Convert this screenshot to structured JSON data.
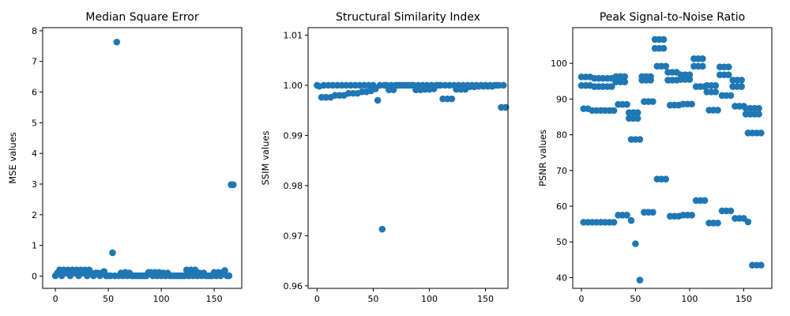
{
  "chart_data": [
    {
      "type": "scatter",
      "title": "Median Square Error",
      "xlabel": "",
      "ylabel": "MSE values",
      "xlim": [
        -12,
        176
      ],
      "ylim": [
        -0.4,
        8.1
      ],
      "xticks": [
        0,
        50,
        100,
        150
      ],
      "yticks": [
        0,
        1,
        2,
        3,
        4,
        5,
        6,
        7,
        8
      ],
      "ytick_labels": [
        "0",
        "1",
        "2",
        "3",
        "4",
        "5",
        "6",
        "7",
        "8"
      ],
      "color": "#1f77b4",
      "grid": false,
      "x_step": 2,
      "values": [
        0.01,
        0.1,
        0.2,
        0.01,
        0.2,
        0.1,
        0.2,
        0.01,
        0.2,
        0.1,
        0.2,
        0.01,
        0.2,
        0.1,
        0.2,
        0.01,
        0.2,
        0.1,
        0.01,
        0.1,
        0.1,
        0.01,
        0.1,
        0.15,
        0.01,
        0.01,
        0.01,
        0.76,
        0.01,
        7.63,
        0.01,
        0.1,
        0.01,
        0.12,
        0.01,
        0.1,
        0.01,
        0.01,
        0.01,
        0.01,
        0.01,
        0.01,
        0.01,
        0.01,
        0.12,
        0.12,
        0.01,
        0.12,
        0.01,
        0.12,
        0.01,
        0.1,
        0.01,
        0.1,
        0.01,
        0.01,
        0.01,
        0.01,
        0.01,
        0.01,
        0.01,
        0.01,
        0.2,
        0.01,
        0.2,
        0.01,
        0.2,
        0.01,
        0.1,
        0.01,
        0.1,
        0.01,
        0.01,
        0.01,
        0.01,
        0.12,
        0.01,
        0.12,
        0.01,
        0.12,
        0.18,
        0.01,
        0.01,
        2.98,
        2.98
      ]
    },
    {
      "type": "scatter",
      "title": "Structural Similarity Index",
      "xlabel": "",
      "ylabel": "SSIM values",
      "xlim": [
        -8,
        170
      ],
      "ylim": [
        0.9595,
        1.0115
      ],
      "xticks": [
        0,
        50,
        100,
        150
      ],
      "yticks": [
        0.96,
        0.97,
        0.98,
        0.99,
        1.0,
        1.01
      ],
      "ytick_labels": [
        "0.96",
        "0.97",
        "0.98",
        "0.99",
        "1.00",
        "1.01"
      ],
      "color": "#1f77b4",
      "grid": false,
      "x_step": 2,
      "values": [
        1.0,
        0.9998,
        0.9976,
        1.0,
        0.9976,
        1.0,
        0.9976,
        1.0,
        0.998,
        1.0,
        0.998,
        1.0,
        0.998,
        1.0,
        0.9984,
        1.0,
        0.9984,
        1.0,
        0.9984,
        1.0,
        0.9987,
        1.0,
        0.9987,
        1.0,
        0.9989,
        1.0,
        0.9993,
        0.997,
        1.0,
        0.9713,
        1.0,
        1.0,
        0.9991,
        1.0,
        0.9991,
        1.0,
        1.0,
        1.0,
        1.0,
        1.0,
        1.0,
        1.0,
        1.0,
        1.0,
        0.9991,
        1.0,
        0.9991,
        1.0,
        0.9992,
        1.0,
        0.9992,
        1.0,
        0.9993,
        1.0,
        1.0,
        1.0,
        0.9973,
        1.0,
        0.9973,
        1.0,
        0.9973,
        1.0,
        0.9992,
        1.0,
        0.9992,
        1.0,
        0.9992,
        1.0,
        0.9997,
        1.0,
        0.9997,
        1.0,
        0.9998,
        1.0,
        0.9998,
        1.0,
        0.9998,
        1.0,
        0.9998,
        1.0,
        1.0,
        1.0,
        0.9956,
        1.0,
        0.9956
      ]
    },
    {
      "type": "scatter",
      "title": "Peak Signal-to-Noise Ratio",
      "xlabel": "",
      "ylabel": "PSNR values",
      "xlim": [
        -8,
        176
      ],
      "ylim": [
        37,
        110
      ],
      "xticks": [
        0,
        50,
        100,
        150
      ],
      "yticks": [
        40,
        50,
        60,
        70,
        80,
        90,
        100
      ],
      "ytick_labels": [
        "40",
        "50",
        "60",
        "70",
        "80",
        "90",
        "100"
      ],
      "color": "#1f77b4",
      "grid": false,
      "x_step": 2,
      "multi_values": [
        [
          96.2,
          93.8
        ],
        [
          87.3,
          55.5
        ],
        [
          96.2,
          93.8
        ],
        [
          87.3,
          55.5
        ],
        [
          96.2,
          93.8
        ],
        [
          86.8,
          55.5
        ],
        [
          95.8,
          93.5
        ],
        [
          86.8,
          55.5
        ],
        [
          95.8,
          93.5
        ],
        [
          86.8,
          55.5
        ],
        [
          95.8,
          93.5
        ],
        [
          86.8,
          55.5
        ],
        [
          95.8,
          93.5
        ],
        [
          86.8,
          55.5
        ],
        [
          95.8,
          93.5
        ],
        [
          86.8,
          55.5
        ],
        [
          96.3,
          94.8
        ],
        [
          88.5,
          57.5
        ],
        [
          96.3,
          94.8
        ],
        [
          88.5,
          57.5
        ],
        [
          96.3,
          94.8
        ],
        [
          88.5,
          57.5
        ],
        [
          86.2,
          84.6
        ],
        [
          78.7,
          56.0
        ],
        [
          86.2,
          84.6
        ],
        [
          49.5,
          78.7
        ],
        [
          86.2,
          84.6
        ],
        [
          39.3,
          78.7
        ],
        [
          96.3,
          95.3
        ],
        [
          89.3,
          58.3
        ],
        [
          96.3,
          95.3
        ],
        [
          89.3,
          58.3
        ],
        [
          96.3,
          95.3
        ],
        [
          89.3,
          58.3
        ],
        [
          106.7,
          104.2
        ],
        [
          99.2,
          67.6
        ],
        [
          106.7,
          104.2
        ],
        [
          99.2,
          67.6
        ],
        [
          106.7,
          104.2
        ],
        [
          99.2,
          67.6
        ],
        [
          97.5,
          95.3
        ],
        [
          88.3,
          57.2
        ],
        [
          97.5,
          95.3
        ],
        [
          88.3,
          57.2
        ],
        [
          97.5,
          95.3
        ],
        [
          88.3,
          57.2
        ],
        [
          96.8,
          95.5
        ],
        [
          88.6,
          57.5
        ],
        [
          96.8,
          95.5
        ],
        [
          88.6,
          57.5
        ],
        [
          96.8,
          95.5
        ],
        [
          88.6,
          57.5
        ],
        [
          101.3,
          99.2
        ],
        [
          93.5,
          61.6
        ],
        [
          101.3,
          99.2
        ],
        [
          93.5,
          61.6
        ],
        [
          101.3,
          99.2
        ],
        [
          93.5,
          61.6
        ],
        [
          93.8,
          92.0
        ],
        [
          86.9,
          55.3
        ],
        [
          93.8,
          92.0
        ],
        [
          86.9,
          55.3
        ],
        [
          93.8,
          92.0
        ],
        [
          86.9,
          55.3
        ],
        [
          99.0,
          96.8
        ],
        [
          91.0,
          58.7
        ],
        [
          99.0,
          96.8
        ],
        [
          91.0,
          58.7
        ],
        [
          99.0,
          96.8
        ],
        [
          91.0,
          58.7
        ],
        [
          95.3,
          93.5
        ],
        [
          88.0,
          56.6
        ],
        [
          95.3,
          93.5
        ],
        [
          88.0,
          56.6
        ],
        [
          95.3,
          93.5
        ],
        [
          88.0,
          56.6
        ],
        [
          87.4,
          85.8
        ],
        [
          80.5,
          55.6
        ],
        [
          87.4,
          85.8
        ],
        [
          80.5,
          43.5
        ],
        [
          87.4,
          85.8
        ],
        [
          80.5,
          43.5
        ],
        [
          87.4,
          85.8
        ],
        [
          80.5,
          43.5
        ]
      ]
    }
  ]
}
